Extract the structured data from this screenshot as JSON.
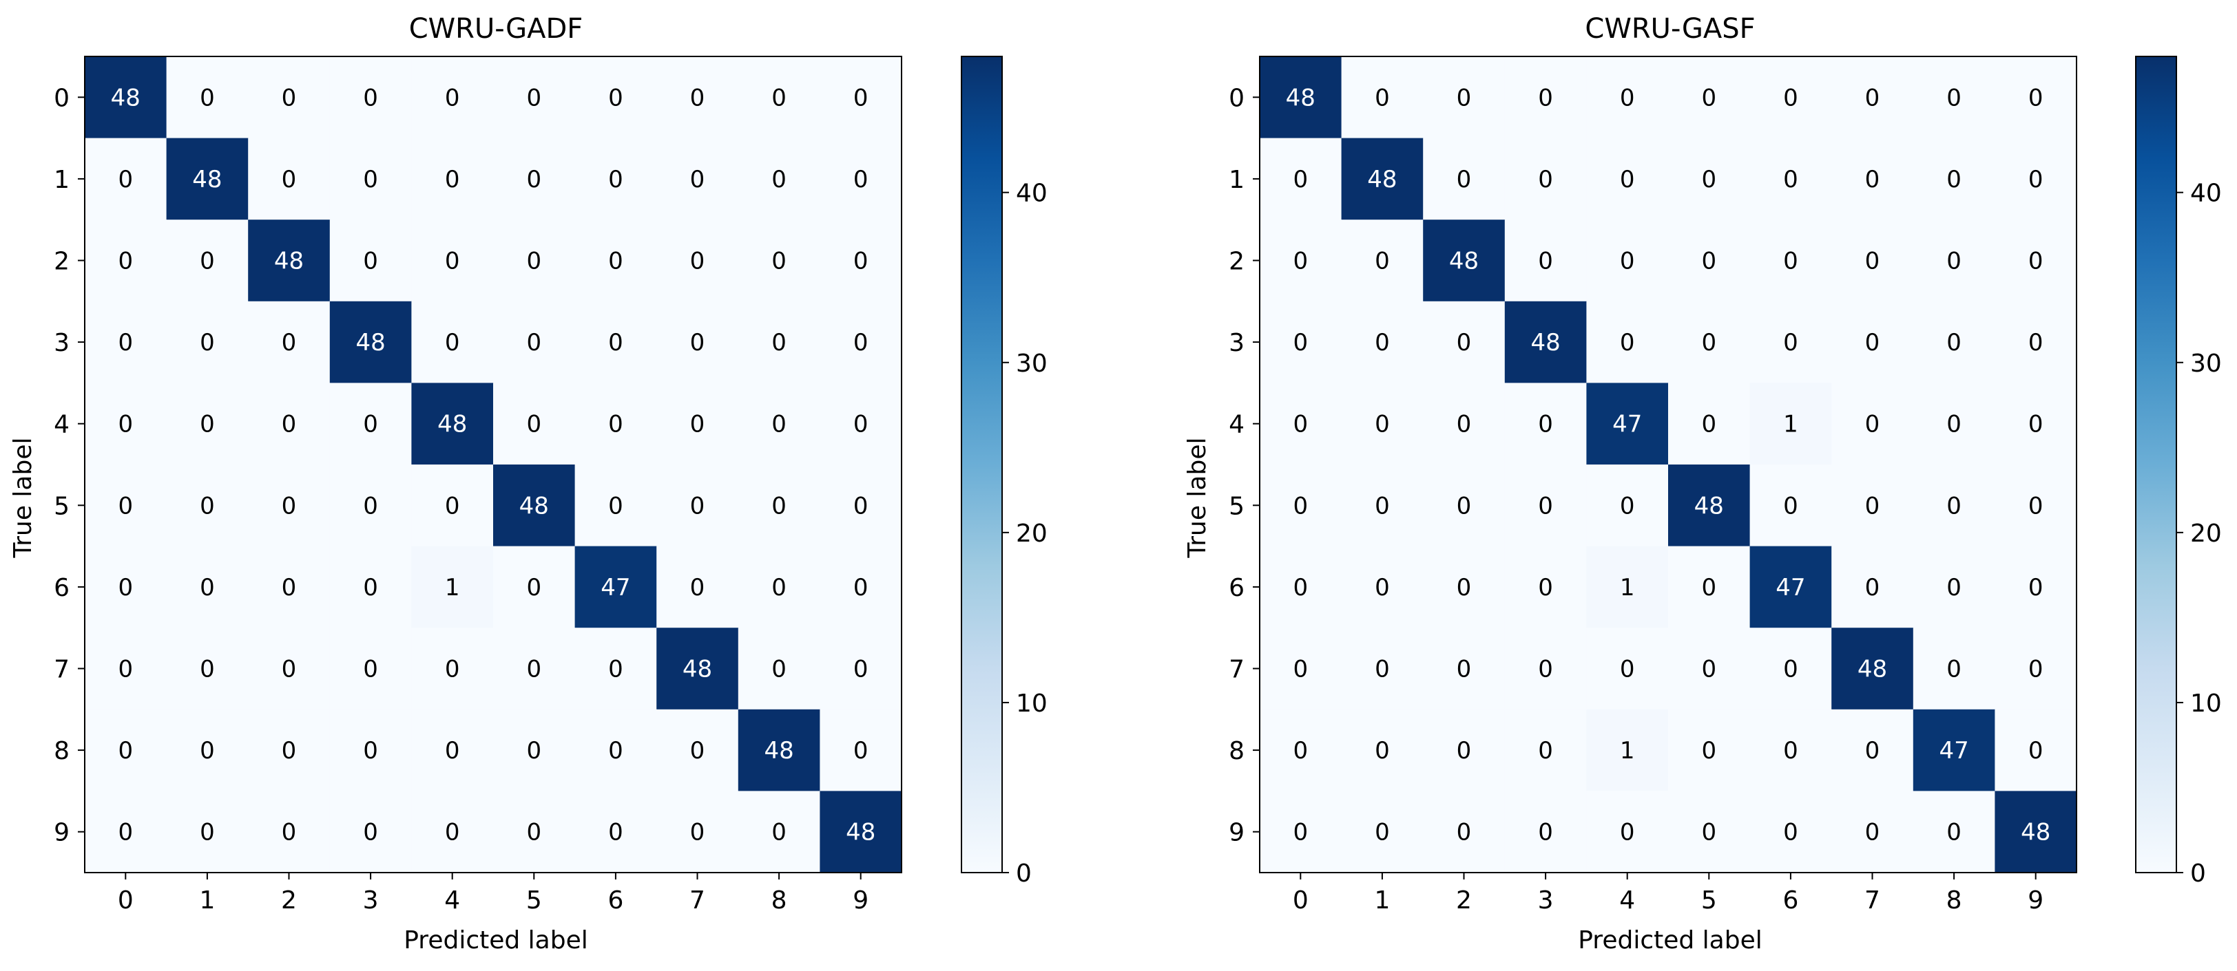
{
  "chart_data": [
    {
      "type": "heatmap",
      "title": "CWRU-GADF",
      "xlabel": "Predicted label",
      "ylabel": "True label",
      "x_categories": [
        "0",
        "1",
        "2",
        "3",
        "4",
        "5",
        "6",
        "7",
        "8",
        "9"
      ],
      "y_categories": [
        "0",
        "1",
        "2",
        "3",
        "4",
        "5",
        "6",
        "7",
        "8",
        "9"
      ],
      "values": [
        [
          48,
          0,
          0,
          0,
          0,
          0,
          0,
          0,
          0,
          0
        ],
        [
          0,
          48,
          0,
          0,
          0,
          0,
          0,
          0,
          0,
          0
        ],
        [
          0,
          0,
          48,
          0,
          0,
          0,
          0,
          0,
          0,
          0
        ],
        [
          0,
          0,
          0,
          48,
          0,
          0,
          0,
          0,
          0,
          0
        ],
        [
          0,
          0,
          0,
          0,
          48,
          0,
          0,
          0,
          0,
          0
        ],
        [
          0,
          0,
          0,
          0,
          0,
          48,
          0,
          0,
          0,
          0
        ],
        [
          0,
          0,
          0,
          0,
          1,
          0,
          47,
          0,
          0,
          0
        ],
        [
          0,
          0,
          0,
          0,
          0,
          0,
          0,
          48,
          0,
          0
        ],
        [
          0,
          0,
          0,
          0,
          0,
          0,
          0,
          0,
          48,
          0
        ],
        [
          0,
          0,
          0,
          0,
          0,
          0,
          0,
          0,
          0,
          48
        ]
      ],
      "colorbar": {
        "range": [
          0,
          48
        ],
        "ticks": [
          "0",
          "10",
          "20",
          "30",
          "40"
        ]
      },
      "colormap": "Blues"
    },
    {
      "type": "heatmap",
      "title": "CWRU-GASF",
      "xlabel": "Predicted label",
      "ylabel": "True label",
      "x_categories": [
        "0",
        "1",
        "2",
        "3",
        "4",
        "5",
        "6",
        "7",
        "8",
        "9"
      ],
      "y_categories": [
        "0",
        "1",
        "2",
        "3",
        "4",
        "5",
        "6",
        "7",
        "8",
        "9"
      ],
      "values": [
        [
          48,
          0,
          0,
          0,
          0,
          0,
          0,
          0,
          0,
          0
        ],
        [
          0,
          48,
          0,
          0,
          0,
          0,
          0,
          0,
          0,
          0
        ],
        [
          0,
          0,
          48,
          0,
          0,
          0,
          0,
          0,
          0,
          0
        ],
        [
          0,
          0,
          0,
          48,
          0,
          0,
          0,
          0,
          0,
          0
        ],
        [
          0,
          0,
          0,
          0,
          47,
          0,
          1,
          0,
          0,
          0
        ],
        [
          0,
          0,
          0,
          0,
          0,
          48,
          0,
          0,
          0,
          0
        ],
        [
          0,
          0,
          0,
          0,
          1,
          0,
          47,
          0,
          0,
          0
        ],
        [
          0,
          0,
          0,
          0,
          0,
          0,
          0,
          48,
          0,
          0
        ],
        [
          0,
          0,
          0,
          0,
          1,
          0,
          0,
          0,
          47,
          0
        ],
        [
          0,
          0,
          0,
          0,
          0,
          0,
          0,
          0,
          0,
          48
        ]
      ],
      "colorbar": {
        "range": [
          0,
          48
        ],
        "ticks": [
          "0",
          "10",
          "20",
          "30",
          "40"
        ]
      },
      "colormap": "Blues"
    }
  ]
}
